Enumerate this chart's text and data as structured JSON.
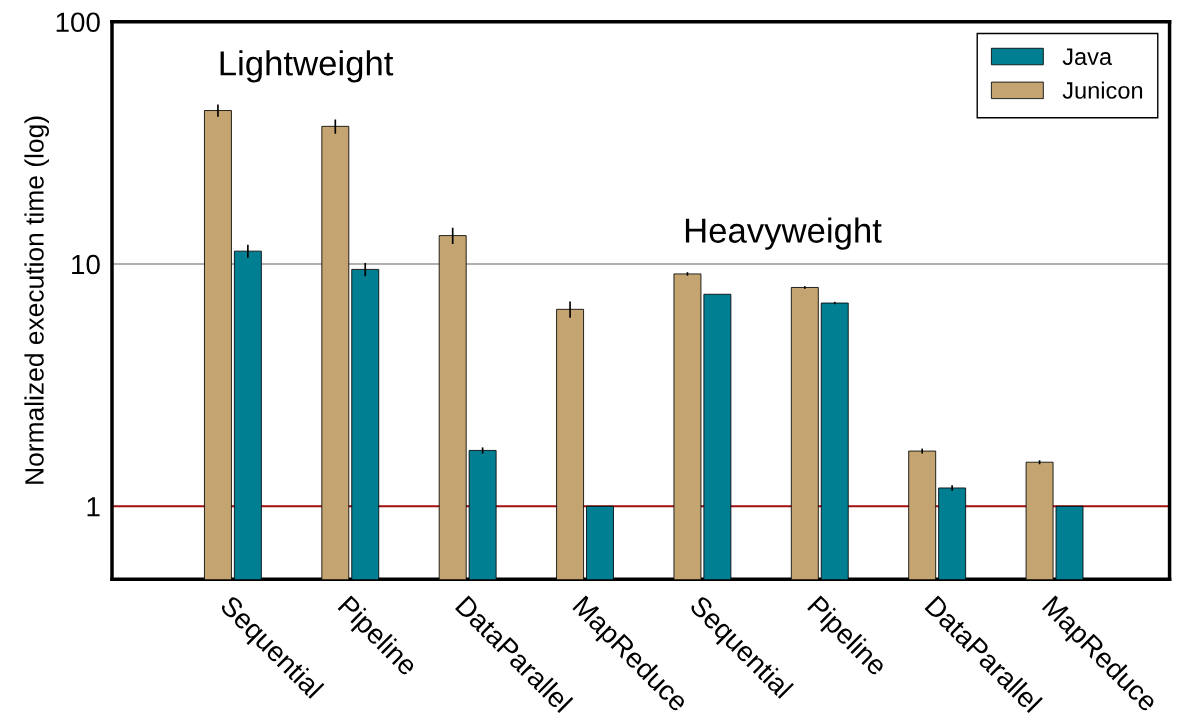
{
  "chart_data": {
    "type": "bar",
    "ylabel": "Normalized execution time (log)",
    "log": true,
    "categories": [
      "Sequential",
      "Pipeline",
      "DataParallel",
      "MapReduce",
      "Sequential",
      "Pipeline",
      "DataParallel",
      "MapReduce"
    ],
    "series": [
      {
        "name": "Junicon",
        "color": "#c4a470",
        "values": [
          43,
          37,
          13.1,
          6.5,
          9.1,
          8.0,
          1.69,
          1.52
        ],
        "errors": [
          2.5,
          2.5,
          1.0,
          0.5,
          0.15,
          0.1,
          0.04,
          0.03
        ]
      },
      {
        "name": "Java",
        "color": "#007f93",
        "values": [
          11.3,
          9.5,
          1.7,
          1.0,
          7.5,
          6.9,
          1.19,
          1.0
        ],
        "errors": [
          0.7,
          0.6,
          0.05,
          null,
          null,
          0.08,
          0.03,
          null
        ]
      }
    ],
    "ylim": [
      0.5,
      100
    ],
    "yticks": [
      1,
      10,
      100
    ],
    "legend": "top right",
    "ref_lines": [
      {
        "axis": "y",
        "value": 1,
        "color": "#a01010"
      },
      {
        "axis": "y",
        "value": 10,
        "color": "#b0b0b0"
      }
    ],
    "annotations": [
      "Lightweight",
      "Heavyweight"
    ]
  }
}
